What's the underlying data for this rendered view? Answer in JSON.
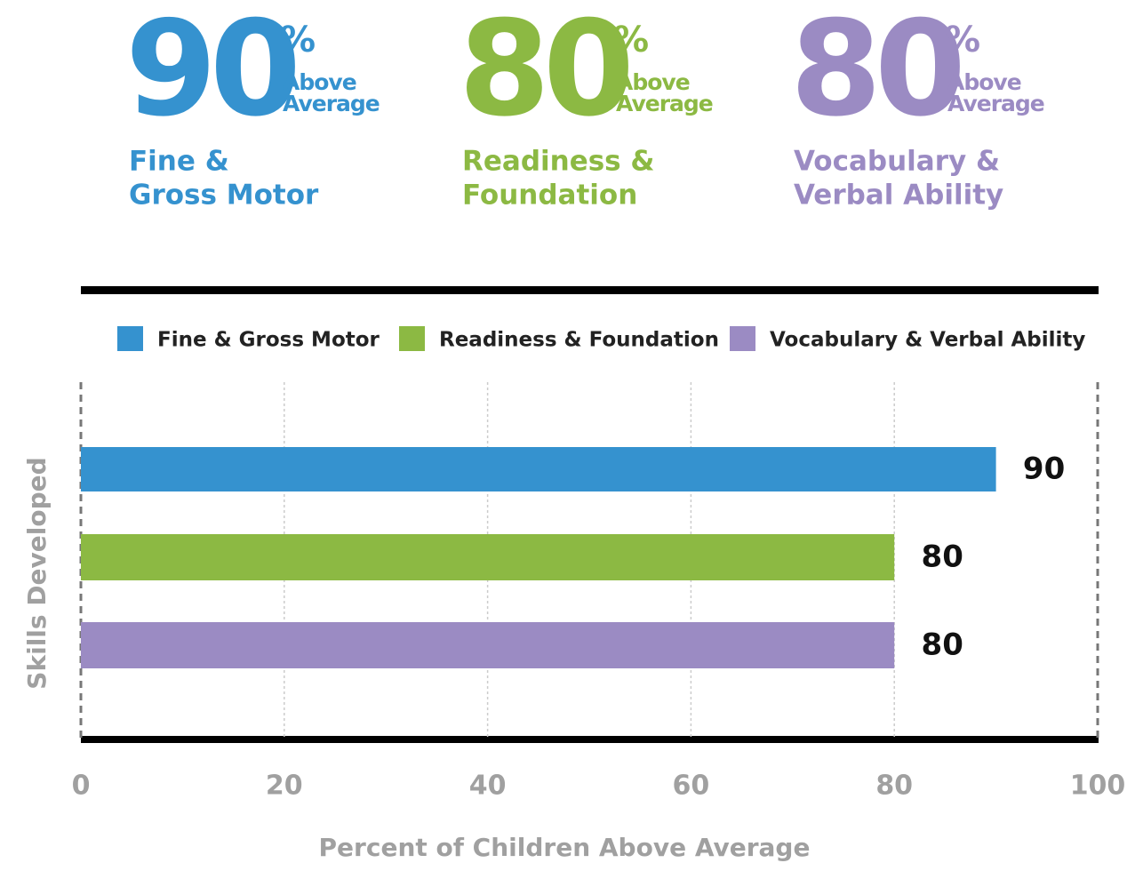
{
  "highlights": [
    {
      "value": 90,
      "suffix": "%",
      "note": [
        "Above",
        "Average"
      ],
      "label": [
        "Fine &",
        "Gross Motor"
      ],
      "color": "#3592cf"
    },
    {
      "value": 80,
      "suffix": "%",
      "note": [
        "Above",
        "Average"
      ],
      "label": [
        "Readiness &",
        "Foundation"
      ],
      "color": "#8cb943"
    },
    {
      "value": 80,
      "suffix": "%",
      "note": [
        "Above",
        "Average"
      ],
      "label": [
        "Vocabulary &",
        "Verbal Ability"
      ],
      "color": "#9b8bc3"
    }
  ],
  "chart_data": {
    "type": "bar",
    "orientation": "horizontal",
    "categories": [
      null
    ],
    "series": [
      {
        "name": "Fine & Gross Motor",
        "color": "#3592cf",
        "values": [
          90
        ]
      },
      {
        "name": "Readiness & Foundation",
        "color": "#8cb943",
        "values": [
          80
        ]
      },
      {
        "name": "Vocabulary & Verbal Ability",
        "color": "#9b8bc3",
        "values": [
          80
        ]
      }
    ],
    "xlim": [
      0,
      100
    ],
    "xticks": [
      0,
      20,
      40,
      60,
      80,
      100
    ],
    "xlabel": "Percent of Children Above Average",
    "ylabel": "Skills Developed",
    "grid": true,
    "legend": "top"
  }
}
